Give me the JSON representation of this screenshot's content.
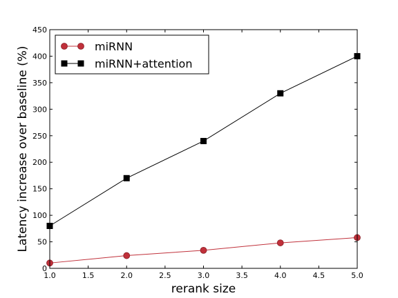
{
  "chart_data": {
    "type": "line",
    "title": "",
    "xlabel": "rerank size",
    "ylabel": "Latency increase over baseline (%)",
    "xlim": [
      1.0,
      5.0
    ],
    "ylim": [
      0,
      450
    ],
    "xticks": [
      "1.0",
      "1.5",
      "2.0",
      "2.5",
      "3.0",
      "3.5",
      "4.0",
      "4.5",
      "5.0"
    ],
    "yticks": [
      "0",
      "50",
      "100",
      "150",
      "200",
      "250",
      "300",
      "350",
      "400",
      "450"
    ],
    "grid": false,
    "legend_position": "top-left",
    "x": [
      1,
      2,
      3,
      4,
      5
    ],
    "series": [
      {
        "name": "miRNN",
        "values": [
          10,
          24,
          34,
          48,
          58
        ],
        "color": "#c0303a",
        "marker": "circle"
      },
      {
        "name": "miRNN+attention",
        "values": [
          80,
          170,
          240,
          330,
          400
        ],
        "color": "#000000",
        "marker": "square"
      }
    ]
  }
}
